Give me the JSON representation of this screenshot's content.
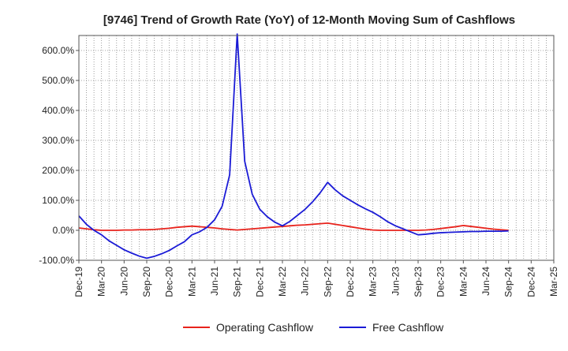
{
  "colors": {
    "operating": "#e8231c",
    "free": "#1b1bd6",
    "grid": "#888888",
    "axis": "#555555",
    "background": "#ffffff"
  },
  "chart_data": {
    "type": "line",
    "title": "[9746]  Trend of Growth Rate (YoY) of 12-Month Moving Sum of Cashflows",
    "xlabel": "",
    "ylabel": "",
    "ylim": [
      -100,
      650
    ],
    "yticks": [
      -100,
      0,
      100,
      200,
      300,
      400,
      500,
      600
    ],
    "ytick_labels": [
      "-100.0%",
      "0.0%",
      "100.0%",
      "200.0%",
      "300.0%",
      "400.0%",
      "500.0%",
      "600.0%"
    ],
    "x_range": [
      "Dec-19",
      "Mar-25"
    ],
    "x_tick_labels": [
      "Dec-19",
      "Mar-20",
      "Jun-20",
      "Sep-20",
      "Dec-20",
      "Mar-21",
      "Jun-21",
      "Sep-21",
      "Dec-21",
      "Mar-22",
      "Jun-22",
      "Sep-22",
      "Dec-22",
      "Mar-23",
      "Jun-23",
      "Sep-23",
      "Dec-23",
      "Mar-24",
      "Jun-24",
      "Sep-24",
      "Dec-24",
      "Mar-25"
    ],
    "grid": true,
    "legend_position": "bottom",
    "x": [
      "Dec-19",
      "Jan-20",
      "Feb-20",
      "Mar-20",
      "Apr-20",
      "May-20",
      "Jun-20",
      "Jul-20",
      "Aug-20",
      "Sep-20",
      "Oct-20",
      "Nov-20",
      "Dec-20",
      "Jan-21",
      "Feb-21",
      "Mar-21",
      "Apr-21",
      "May-21",
      "Jun-21",
      "Jul-21",
      "Aug-21",
      "Sep-21",
      "Oct-21",
      "Nov-21",
      "Dec-21",
      "Jan-22",
      "Feb-22",
      "Mar-22",
      "Apr-22",
      "May-22",
      "Jun-22",
      "Jul-22",
      "Aug-22",
      "Sep-22",
      "Oct-22",
      "Nov-22",
      "Dec-22",
      "Jan-23",
      "Feb-23",
      "Mar-23",
      "Apr-23",
      "May-23",
      "Jun-23",
      "Jul-23",
      "Aug-23",
      "Sep-23",
      "Oct-23",
      "Nov-23",
      "Dec-23",
      "Jan-24",
      "Feb-24",
      "Mar-24",
      "Apr-24",
      "May-24",
      "Jun-24",
      "Jul-24",
      "Aug-24",
      "Sep-24"
    ],
    "series": [
      {
        "name": "Operating Cashflow",
        "color_key": "operating",
        "values": [
          8,
          5,
          2,
          0,
          0,
          0,
          1,
          1,
          2,
          2,
          3,
          5,
          7,
          10,
          12,
          14,
          12,
          10,
          8,
          5,
          3,
          1,
          3,
          5,
          7,
          9,
          11,
          13,
          15,
          17,
          18,
          20,
          22,
          24,
          20,
          16,
          12,
          8,
          4,
          1,
          0,
          0,
          0,
          0,
          0,
          0,
          1,
          3,
          6,
          9,
          12,
          16,
          13,
          10,
          7,
          4,
          2,
          0
        ]
      },
      {
        "name": "Free Cashflow",
        "color_key": "free",
        "values": [
          48,
          20,
          0,
          -15,
          -35,
          -50,
          -65,
          -76,
          -86,
          -93,
          -87,
          -78,
          -67,
          -52,
          -38,
          -15,
          -5,
          10,
          35,
          80,
          185,
          655,
          230,
          120,
          70,
          45,
          27,
          15,
          30,
          50,
          70,
          95,
          125,
          160,
          135,
          115,
          100,
          85,
          72,
          60,
          45,
          28,
          15,
          5,
          -5,
          -15,
          -13,
          -10,
          -8,
          -7,
          -6,
          -5,
          -4,
          -4,
          -3,
          -3,
          -3,
          -2
        ]
      }
    ]
  }
}
